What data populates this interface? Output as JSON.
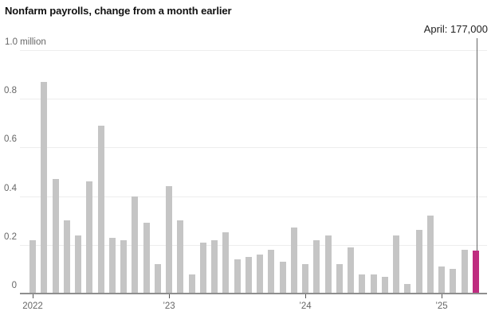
{
  "title": "Nonfarm payrolls, change from a month earlier",
  "annotation": {
    "label": "April: 177,000"
  },
  "chart_data": {
    "type": "bar",
    "title": "Nonfarm payrolls, change from a month earlier",
    "unit": "million jobs, change from a month earlier",
    "grid": "horizontal",
    "legend": "none",
    "ylim": [
      0,
      1.0
    ],
    "yticks": [
      0,
      0.2,
      0.4,
      0.6,
      0.8,
      1.0
    ],
    "ytick_labels": [
      "0",
      "0.2",
      "0.4",
      "0.6",
      "0.8",
      "1.0 million"
    ],
    "xticks": [
      {
        "label": "2022",
        "month_index": 0
      },
      {
        "label": "’23",
        "month_index": 12
      },
      {
        "label": "’24",
        "month_index": 24
      },
      {
        "label": "’25",
        "month_index": 36
      }
    ],
    "bar_color": "#c5c5c5",
    "highlight": {
      "month": "Apr 2025",
      "month_index": 39,
      "value_label": "April: 177,000",
      "value_millions": 0.177,
      "color": "#bf2c80"
    },
    "months": [
      "Jan 2022",
      "Feb 2022",
      "Mar 2022",
      "Apr 2022",
      "May 2022",
      "Jun 2022",
      "Jul 2022",
      "Aug 2022",
      "Sep 2022",
      "Oct 2022",
      "Nov 2022",
      "Dec 2022",
      "Jan 2023",
      "Feb 2023",
      "Mar 2023",
      "Apr 2023",
      "May 2023",
      "Jun 2023",
      "Jul 2023",
      "Aug 2023",
      "Sep 2023",
      "Oct 2023",
      "Nov 2023",
      "Dec 2023",
      "Jan 2024",
      "Feb 2024",
      "Mar 2024",
      "Apr 2024",
      "May 2024",
      "Jun 2024",
      "Jul 2024",
      "Aug 2024",
      "Sep 2024",
      "Oct 2024",
      "Nov 2024",
      "Dec 2024",
      "Jan 2025",
      "Feb 2025",
      "Mar 2025",
      "Apr 2025"
    ],
    "values": [
      0.22,
      0.87,
      0.47,
      0.3,
      0.24,
      0.46,
      0.69,
      0.23,
      0.22,
      0.4,
      0.29,
      0.12,
      0.44,
      0.3,
      0.08,
      0.21,
      0.22,
      0.25,
      0.14,
      0.15,
      0.16,
      0.18,
      0.13,
      0.27,
      0.12,
      0.22,
      0.24,
      0.12,
      0.19,
      0.08,
      0.08,
      0.07,
      0.24,
      0.04,
      0.26,
      0.32,
      0.11,
      0.1,
      0.18,
      0.177
    ]
  }
}
